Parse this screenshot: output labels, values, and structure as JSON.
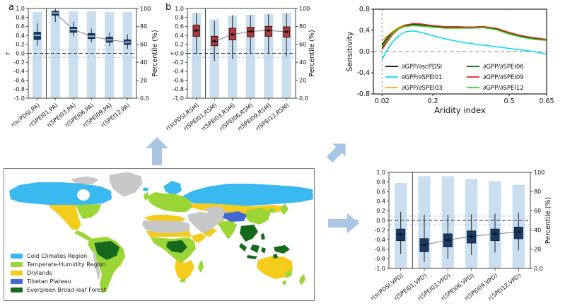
{
  "map": {
    "legend": [
      {
        "label": "Cold Climates Region",
        "color": "#3ab8f0"
      },
      {
        "label": "Temperate-Humidity Region",
        "color": "#9cd636"
      },
      {
        "label": "Drylands",
        "color": "#f5cc1c"
      },
      {
        "label": "Tibetan Plateau",
        "color": "#4468d1"
      },
      {
        "label": "Evergreen Broad-leaf Forest",
        "color": "#14691c"
      }
    ],
    "nodata_color": "#c8c8c8",
    "ocean_color": "#ffffff"
  },
  "arrows": {
    "color": "#a9c7e5",
    "items": [
      "up",
      "up-right",
      "right"
    ]
  },
  "chart_data": [
    {
      "id": "panel_a",
      "type": "box",
      "panel_label": "a",
      "ylabel": "r",
      "y2label": "Percentile (%)",
      "ylim": [
        -1,
        1
      ],
      "yticks": [
        1.0,
        0.8,
        0.6,
        0.4,
        0.2,
        0.0,
        -0.2,
        -0.4,
        -0.6,
        -0.8,
        -1.0
      ],
      "y2ticks": [
        {
          "v": 100,
          "label": "100"
        },
        {
          "v": 80,
          "label": "80"
        },
        {
          "v": 60,
          "label": "60"
        },
        {
          "v": 40,
          "label": "40"
        },
        {
          "v": 20,
          "label": "20"
        },
        {
          "v": 0,
          "label": "0.0"
        }
      ],
      "categories": [
        "r(scPDSI,PA)",
        "r(SPEI01,PA)",
        "r(SPEI03,PA)",
        "r(SPEI06,PA)",
        "r(SPEI09,PA)",
        "r(SPEI12,PA)"
      ],
      "boxes": [
        {
          "lo": 0.17,
          "q1": 0.31,
          "med": 0.4,
          "q3": 0.47,
          "hi": 0.67
        },
        {
          "lo": 0.7,
          "q1": 0.85,
          "med": 0.9,
          "q3": 0.94,
          "hi": 1.0
        },
        {
          "lo": 0.38,
          "q1": 0.47,
          "med": 0.53,
          "q3": 0.58,
          "hi": 0.7
        },
        {
          "lo": 0.24,
          "q1": 0.33,
          "med": 0.38,
          "q3": 0.44,
          "hi": 0.55
        },
        {
          "lo": 0.16,
          "q1": 0.25,
          "med": 0.3,
          "q3": 0.36,
          "hi": 0.46
        },
        {
          "lo": 0.1,
          "q1": 0.2,
          "med": 0.25,
          "q3": 0.3,
          "hi": 0.42
        }
      ],
      "bar_percentiles": [
        96,
        97,
        97,
        97,
        96,
        96
      ],
      "ref_zero": 0.0,
      "ref_band": [
        0.09,
        -0.09
      ],
      "median_marker": "dash",
      "colors": {
        "box": "#1a3a64",
        "box_edge": "#0e2240",
        "median": "#9dc3e6",
        "bar": "#c9dfef",
        "whisker": "#222222",
        "trend": "#8a8a8a",
        "ref_band": "#a9c9ea",
        "ref_zero": "#333333"
      }
    },
    {
      "id": "panel_b",
      "type": "box",
      "panel_label": "b",
      "ylabel": "r",
      "y2label": "Percentile (%)",
      "ylim": [
        -1,
        1
      ],
      "yticks": [
        1.0,
        0.8,
        0.6,
        0.4,
        0.2,
        0.0,
        -0.2,
        -0.4,
        -0.6,
        -0.8,
        -1.0
      ],
      "y2ticks": [
        {
          "v": 100,
          "label": "100"
        },
        {
          "v": 80,
          "label": "80"
        },
        {
          "v": 60,
          "label": "60"
        },
        {
          "v": 40,
          "label": "40"
        },
        {
          "v": 20,
          "label": "20"
        },
        {
          "v": 0,
          "label": "0.0"
        }
      ],
      "categories": [
        "r(scPDSI,RSM)",
        "r(SPEI01,RSM)",
        "r(SPEI03,RSM)",
        "r(SPEI06,RSM)",
        "r(SPEI09,RSM)",
        "r(SPEI12,RSM)"
      ],
      "boxes": [
        {
          "lo": -0.02,
          "q1": 0.38,
          "med": 0.51,
          "q3": 0.63,
          "hi": 0.9
        },
        {
          "lo": -0.17,
          "q1": 0.17,
          "med": 0.27,
          "q3": 0.38,
          "hi": 0.72
        },
        {
          "lo": -0.13,
          "q1": 0.3,
          "med": 0.42,
          "q3": 0.56,
          "hi": 0.85
        },
        {
          "lo": -0.02,
          "q1": 0.37,
          "med": 0.49,
          "q3": 0.58,
          "hi": 0.85
        },
        {
          "lo": 0.0,
          "q1": 0.38,
          "med": 0.51,
          "q3": 0.6,
          "hi": 0.87
        },
        {
          "lo": -0.07,
          "q1": 0.36,
          "med": 0.48,
          "q3": 0.59,
          "hi": 0.88
        }
      ],
      "bar_percentiles": [
        95,
        88,
        92,
        93,
        94,
        95
      ],
      "ref_zero": 0.0,
      "ref_band": [
        0.09,
        -0.09
      ],
      "median_marker": "dot",
      "colors": {
        "box": "#b13a3a",
        "box_edge": "#401010",
        "median": "#1a1a1a",
        "bar": "#c9dfef",
        "whisker": "#222222",
        "trend": "#8a8a8a",
        "ref_band": "#a9c9ea",
        "ref_zero": "#333333"
      }
    },
    {
      "id": "panel_vpd",
      "type": "box",
      "panel_label": "",
      "ylabel": "r",
      "y2label": "Percentile (%)",
      "ylim": [
        -1,
        1
      ],
      "yticks": [
        1.0,
        0.8,
        0.6,
        0.4,
        0.2,
        0.0,
        -0.2,
        -0.4,
        -0.6,
        -0.8,
        -1.0
      ],
      "y2ticks": [
        {
          "v": 100,
          "label": "100"
        },
        {
          "v": 80,
          "label": "80"
        },
        {
          "v": 60,
          "label": "60"
        },
        {
          "v": 40,
          "label": "40"
        },
        {
          "v": 20,
          "label": "20"
        },
        {
          "v": 0,
          "label": "0.0"
        }
      ],
      "categories": [
        "r(scPDSI,VPD)",
        "r(SPEI01,VPD)",
        "r(SPEI03,VPD)",
        "r(SPEI06,VPD)",
        "r(SPEI09,VPD)",
        "r(SPEI12,VPD)"
      ],
      "boxes": [
        {
          "lo": -0.7,
          "q1": -0.42,
          "med": -0.29,
          "q3": -0.18,
          "hi": 0.18
        },
        {
          "lo": -0.86,
          "q1": -0.65,
          "med": -0.51,
          "q3": -0.38,
          "hi": 0.12
        },
        {
          "lo": -0.8,
          "q1": -0.55,
          "med": -0.41,
          "q3": -0.28,
          "hi": 0.12
        },
        {
          "lo": -0.72,
          "q1": -0.47,
          "med": -0.33,
          "q3": -0.22,
          "hi": 0.13
        },
        {
          "lo": -0.67,
          "q1": -0.42,
          "med": -0.28,
          "q3": -0.18,
          "hi": 0.14
        },
        {
          "lo": -0.62,
          "q1": -0.38,
          "med": -0.24,
          "q3": -0.14,
          "hi": 0.16
        }
      ],
      "bar_percentiles": [
        89,
        96,
        96,
        93,
        91,
        87
      ],
      "ref_zero": 0.0,
      "ref_band": [
        0.09,
        -0.09
      ],
      "median_marker": "dot",
      "colors": {
        "box": "#1a3a64",
        "box_edge": "#0e2240",
        "median": "#1a1a1a",
        "bar": "#c9dfef",
        "whisker": "#222222",
        "trend": "#8a8a8a",
        "ref_band": "#a9c9ea",
        "ref_zero": "#333333"
      }
    },
    {
      "id": "sensitivity",
      "type": "line",
      "ylabel": "Sensitivity",
      "xlabel": "Aridity index",
      "ylim": [
        -0.8,
        0.8
      ],
      "yticks": [
        0.8,
        0.4,
        0.0,
        -0.4,
        -0.8
      ],
      "xticks": [
        {
          "v": 0.02,
          "label": "0.02"
        },
        {
          "v": 0.2,
          "label": "0.2"
        },
        {
          "v": 0.5,
          "label": "0.5"
        },
        {
          "v": 0.65,
          "label": "0.65"
        }
      ],
      "vline": 0.02,
      "hline": 0.0,
      "x": [
        0.02,
        0.04,
        0.06,
        0.08,
        0.1,
        0.13,
        0.16,
        0.2,
        0.25,
        0.3,
        0.35,
        0.4,
        0.45,
        0.5,
        0.55,
        0.6,
        0.65
      ],
      "series": [
        {
          "name": "∂GPP/∂scPDSI",
          "color": "#000000",
          "values": [
            0.13,
            0.27,
            0.38,
            0.45,
            0.5,
            0.52,
            0.51,
            0.48,
            0.46,
            0.46,
            0.46,
            0.47,
            0.43,
            0.35,
            0.29,
            0.25,
            0.22
          ]
        },
        {
          "name": "∂GPP/∂SPEI01",
          "color": "#00dbf0",
          "values": [
            -0.15,
            0.05,
            0.2,
            0.3,
            0.37,
            0.39,
            0.36,
            0.3,
            0.24,
            0.19,
            0.15,
            0.12,
            0.09,
            0.06,
            0.03,
            0.0,
            -0.05
          ]
        },
        {
          "name": "∂GPP/∂SPEI03",
          "color": "#ffa51e",
          "values": [
            0.2,
            0.3,
            0.39,
            0.46,
            0.5,
            0.51,
            0.5,
            0.47,
            0.45,
            0.45,
            0.45,
            0.46,
            0.42,
            0.34,
            0.28,
            0.24,
            0.22
          ]
        },
        {
          "name": "∂GPP/∂SPEI06",
          "color": "#006400",
          "values": [
            0.08,
            0.22,
            0.35,
            0.43,
            0.48,
            0.51,
            0.5,
            0.48,
            0.46,
            0.46,
            0.46,
            0.47,
            0.43,
            0.35,
            0.29,
            0.25,
            0.22
          ]
        },
        {
          "name": "∂GPP/∂SPEI09",
          "color": "#eb1e1e",
          "values": [
            0.04,
            0.2,
            0.34,
            0.43,
            0.49,
            0.53,
            0.52,
            0.49,
            0.47,
            0.47,
            0.46,
            0.47,
            0.44,
            0.36,
            0.3,
            0.26,
            0.23
          ]
        },
        {
          "name": "∂GPP/∂SPEI12",
          "color": "#2ed52e",
          "values": [
            0.1,
            0.24,
            0.36,
            0.43,
            0.47,
            0.49,
            0.48,
            0.46,
            0.44,
            0.44,
            0.44,
            0.45,
            0.41,
            0.33,
            0.27,
            0.23,
            0.21
          ]
        }
      ]
    }
  ]
}
